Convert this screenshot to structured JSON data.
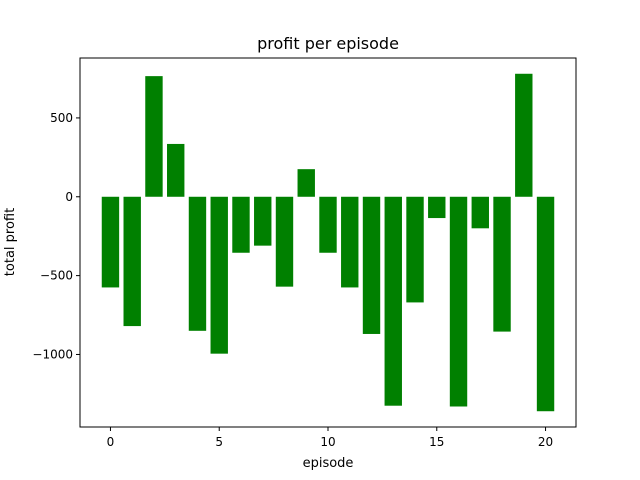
{
  "chart_data": {
    "type": "bar",
    "title": "profit per episode",
    "xlabel": "episode",
    "ylabel": "total profit",
    "color": "#008000",
    "grid": false,
    "xlim": [
      -1.4,
      21.4
    ],
    "ylim": [
      -1460,
      880
    ],
    "xticks": [
      0,
      5,
      10,
      15,
      20
    ],
    "yticks": [
      -1000,
      -500,
      0,
      500
    ],
    "ytick_labels": [
      "−1000",
      "−500",
      "0",
      "500"
    ],
    "x": [
      0,
      1,
      2,
      3,
      4,
      5,
      6,
      7,
      8,
      9,
      10,
      11,
      12,
      13,
      14,
      15,
      16,
      17,
      18,
      19,
      20
    ],
    "values": [
      -575,
      -820,
      765,
      335,
      -850,
      -995,
      -355,
      -310,
      -570,
      175,
      -355,
      -575,
      -870,
      -1325,
      -670,
      -135,
      -1330,
      -200,
      -855,
      780,
      -1360
    ]
  }
}
